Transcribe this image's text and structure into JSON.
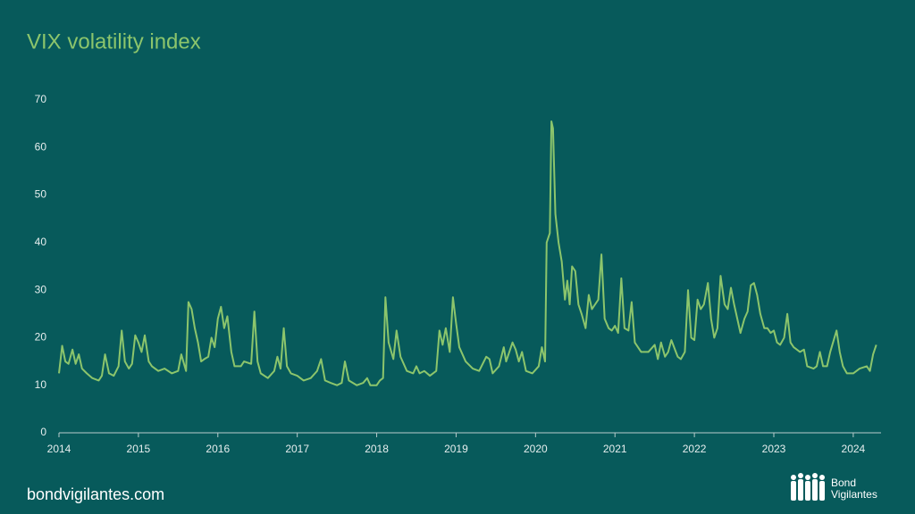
{
  "chart_data": {
    "type": "line",
    "title": "VIX volatility index",
    "x": [
      2014.0,
      2014.04,
      2014.08,
      2014.12,
      2014.17,
      2014.21,
      2014.25,
      2014.29,
      2014.35,
      2014.42,
      2014.5,
      2014.54,
      2014.58,
      2014.63,
      2014.69,
      2014.75,
      2014.79,
      2014.83,
      2014.88,
      2014.92,
      2014.96,
      2015.0,
      2015.04,
      2015.08,
      2015.13,
      2015.17,
      2015.25,
      2015.33,
      2015.42,
      2015.5,
      2015.54,
      2015.6,
      2015.63,
      2015.67,
      2015.71,
      2015.75,
      2015.79,
      2015.83,
      2015.88,
      2015.92,
      2015.96,
      2016.0,
      2016.04,
      2016.08,
      2016.12,
      2016.17,
      2016.21,
      2016.29,
      2016.33,
      2016.42,
      2016.46,
      2016.5,
      2016.54,
      2016.63,
      2016.71,
      2016.75,
      2016.79,
      2016.83,
      2016.87,
      2016.92,
      2017.0,
      2017.08,
      2017.17,
      2017.25,
      2017.3,
      2017.35,
      2017.42,
      2017.5,
      2017.56,
      2017.6,
      2017.65,
      2017.75,
      2017.83,
      2017.88,
      2017.92,
      2018.0,
      2018.04,
      2018.08,
      2018.11,
      2018.15,
      2018.21,
      2018.25,
      2018.3,
      2018.38,
      2018.46,
      2018.5,
      2018.54,
      2018.6,
      2018.67,
      2018.75,
      2018.79,
      2018.83,
      2018.87,
      2018.92,
      2018.96,
      2019.0,
      2019.04,
      2019.12,
      2019.21,
      2019.29,
      2019.38,
      2019.42,
      2019.46,
      2019.54,
      2019.6,
      2019.63,
      2019.71,
      2019.75,
      2019.79,
      2019.83,
      2019.88,
      2019.96,
      2020.04,
      2020.08,
      2020.12,
      2020.14,
      2020.18,
      2020.2,
      2020.22,
      2020.25,
      2020.29,
      2020.33,
      2020.37,
      2020.4,
      2020.43,
      2020.46,
      2020.5,
      2020.54,
      2020.58,
      2020.63,
      2020.67,
      2020.71,
      2020.75,
      2020.79,
      2020.83,
      2020.87,
      2020.92,
      2020.96,
      2021.0,
      2021.04,
      2021.08,
      2021.12,
      2021.17,
      2021.21,
      2021.25,
      2021.33,
      2021.42,
      2021.5,
      2021.54,
      2021.58,
      2021.63,
      2021.67,
      2021.71,
      2021.79,
      2021.83,
      2021.88,
      2021.92,
      2021.96,
      2022.0,
      2022.04,
      2022.08,
      2022.12,
      2022.17,
      2022.21,
      2022.25,
      2022.29,
      2022.33,
      2022.38,
      2022.42,
      2022.46,
      2022.5,
      2022.58,
      2022.63,
      2022.67,
      2022.71,
      2022.75,
      2022.79,
      2022.83,
      2022.88,
      2022.92,
      2022.96,
      2023.0,
      2023.04,
      2023.08,
      2023.13,
      2023.17,
      2023.21,
      2023.25,
      2023.33,
      2023.38,
      2023.42,
      2023.5,
      2023.54,
      2023.58,
      2023.62,
      2023.67,
      2023.71,
      2023.79,
      2023.83,
      2023.87,
      2023.92,
      2024.0,
      2024.08,
      2024.17,
      2024.21,
      2024.25,
      2024.29
    ],
    "series": [
      {
        "name": "VIX",
        "color": "#8cc56c",
        "values": [
          12.5,
          18.3,
          15,
          14.5,
          17.5,
          14.5,
          16.5,
          13.5,
          12.5,
          11.5,
          11,
          12,
          16.5,
          12.5,
          12,
          14,
          21.5,
          15,
          13.5,
          14.5,
          20.5,
          19,
          17,
          20.5,
          15,
          14,
          13,
          13.5,
          12.5,
          13,
          16.5,
          13,
          27.5,
          26,
          22,
          19,
          15,
          15.5,
          16,
          20,
          18,
          24,
          26.5,
          22,
          24.5,
          17,
          14,
          14,
          15,
          14.5,
          25.5,
          15,
          12.5,
          11.5,
          13,
          16,
          13.5,
          22,
          14,
          12.5,
          12,
          11,
          11.5,
          13,
          15.5,
          11,
          10.5,
          10,
          10.5,
          15,
          11,
          10,
          10.5,
          11.5,
          10,
          10,
          11,
          11.5,
          28.5,
          19,
          15.5,
          21.5,
          16,
          13,
          12.5,
          14,
          12.5,
          13,
          12,
          13,
          21.5,
          18.5,
          22,
          17,
          28.5,
          23,
          18,
          15,
          13.5,
          13,
          16,
          15.5,
          12.5,
          14,
          18,
          15,
          19,
          17.5,
          15,
          17,
          13,
          12.5,
          14,
          18,
          15,
          40,
          42,
          65.5,
          64,
          46,
          40,
          36,
          28,
          32,
          27,
          35,
          34,
          27,
          25,
          22,
          29,
          26,
          27,
          28,
          37.5,
          24,
          22,
          21.5,
          22.5,
          21,
          32.5,
          22,
          21.5,
          27.5,
          19,
          17,
          17,
          18.5,
          15.5,
          19,
          16,
          17,
          19.5,
          16,
          15.5,
          17,
          30,
          20,
          19.5,
          28,
          26,
          27,
          31.5,
          24,
          20,
          22,
          33,
          27,
          26,
          30.5,
          27,
          21,
          24,
          25.5,
          31,
          31.5,
          29,
          25,
          22,
          22,
          21,
          21.5,
          19,
          18.5,
          20,
          25,
          19,
          18,
          17,
          17.5,
          14,
          13.5,
          14,
          17,
          14,
          14,
          17,
          21.5,
          17,
          14,
          12.5,
          12.5,
          13.5,
          14,
          13,
          16.5,
          18.5
        ]
      }
    ],
    "xlim": [
      2014,
      2024.35
    ],
    "xticks": [
      2014,
      2015,
      2016,
      2017,
      2018,
      2019,
      2020,
      2021,
      2022,
      2023,
      2024
    ],
    "ylim": [
      0,
      70
    ],
    "yticks": [
      0,
      10,
      20,
      30,
      40,
      50,
      60,
      70
    ],
    "grid": false
  },
  "footer": {
    "site": "bondvigilantes.com",
    "logo": [
      "Bond",
      "Vigilantes"
    ]
  }
}
